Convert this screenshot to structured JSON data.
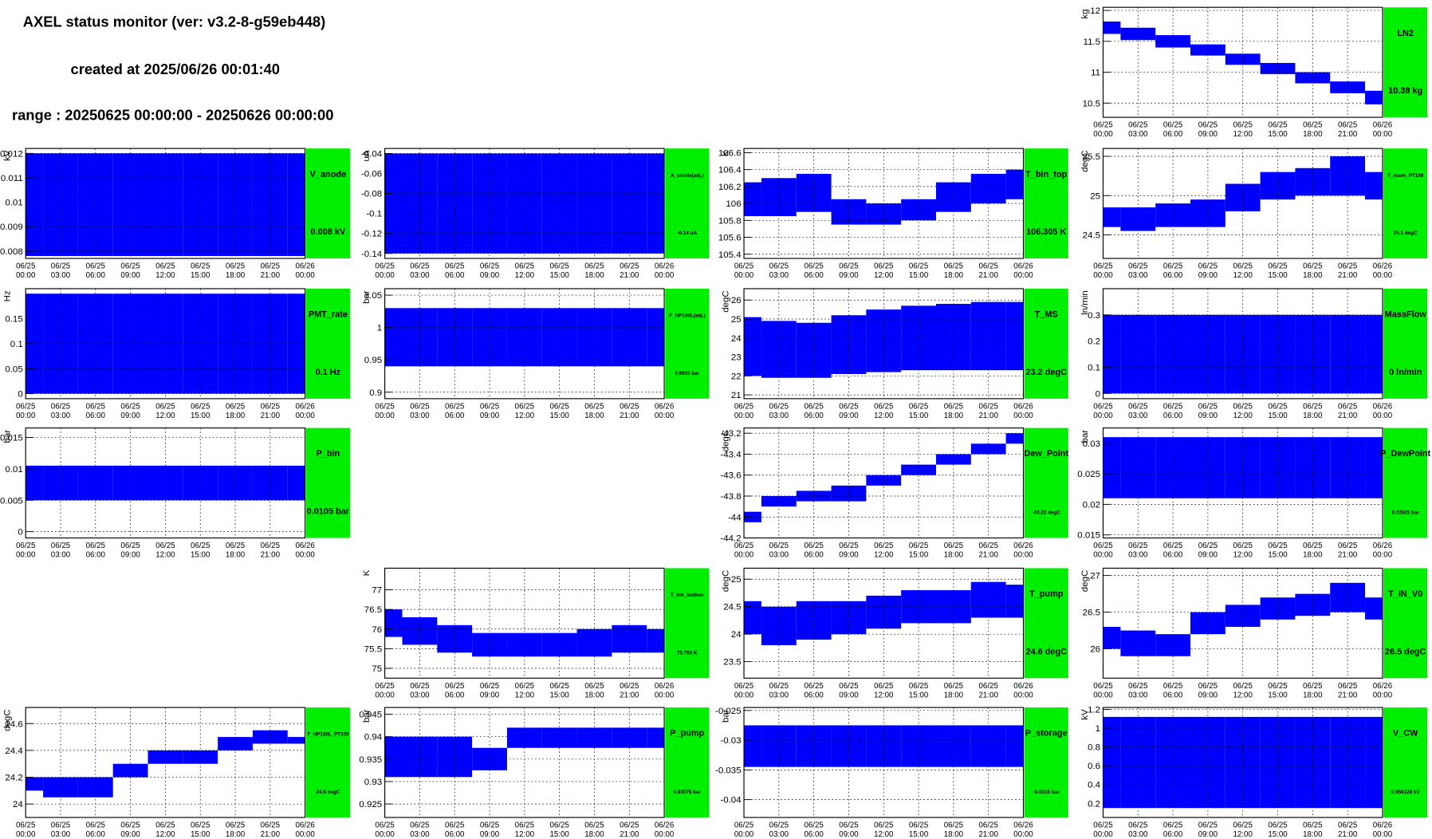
{
  "header": {
    "title": "AXEL status monitor (ver: v3.2-8-g59eb448)",
    "created": "created at 2025/06/26 00:01:40",
    "range": "range : 20250625 00:00:00 - 20250626 00:00:00"
  },
  "time_ticks": [
    {
      "date": "06/25",
      "time": "00:00"
    },
    {
      "date": "06/25",
      "time": "03:00"
    },
    {
      "date": "06/25",
      "time": "06:00"
    },
    {
      "date": "06/25",
      "time": "09:00"
    },
    {
      "date": "06/25",
      "time": "12:00"
    },
    {
      "date": "06/25",
      "time": "15:00"
    },
    {
      "date": "06/25",
      "time": "18:00"
    },
    {
      "date": "06/25",
      "time": "21:00"
    },
    {
      "date": "06/26",
      "time": "00:00"
    }
  ],
  "chart_data": [
    {
      "type": "band",
      "title": "LN2",
      "value_text": "10.38 kg",
      "ylabel": "kg",
      "color": "#0000ff",
      "grid": true,
      "ylim": [
        10.27,
        12.05
      ],
      "yticks": [
        10.5,
        11,
        11.5,
        12
      ],
      "low": [
        11.62,
        11.52,
        11.4,
        11.27,
        11.12,
        10.97,
        10.82,
        10.66,
        10.48
      ],
      "high": [
        11.82,
        11.72,
        11.6,
        11.45,
        11.3,
        11.15,
        11.0,
        10.85,
        10.7
      ]
    },
    {
      "type": "band",
      "title": "V_anode",
      "value_text": "0.008 kV",
      "ylabel": "kV",
      "color": "#0000ff",
      "grid": true,
      "ylim": [
        0.0077,
        0.0122
      ],
      "yticks": [
        0.008,
        0.009,
        0.01,
        0.011,
        0.012
      ],
      "low": [
        0.0078,
        0.0078,
        0.0078,
        0.0078,
        0.0078,
        0.0078,
        0.0078,
        0.0078,
        0.0078
      ],
      "high": [
        0.012,
        0.012,
        0.012,
        0.012,
        0.012,
        0.012,
        0.012,
        0.012,
        0.012
      ]
    },
    {
      "type": "band",
      "title": "A_anode(adj.)",
      "value_text": "-0.14 uA",
      "ylabel": "uA",
      "color": "#0000ff",
      "grid": true,
      "ylim": [
        -0.145,
        -0.035
      ],
      "yticks": [
        -0.14,
        -0.12,
        -0.1,
        -0.08,
        -0.06,
        -0.04
      ],
      "low": [
        -0.14,
        -0.14,
        -0.14,
        -0.14,
        -0.14,
        -0.14,
        -0.14,
        -0.14,
        -0.14
      ],
      "high": [
        -0.04,
        -0.04,
        -0.04,
        -0.04,
        -0.04,
        -0.04,
        -0.04,
        -0.04,
        -0.04
      ]
    },
    {
      "type": "band",
      "title": "T_bin_top",
      "value_text": "106.305 K",
      "ylabel": "K",
      "color": "#0000ff",
      "grid": true,
      "ylim": [
        105.35,
        106.65
      ],
      "yticks": [
        105.4,
        105.6,
        105.8,
        106,
        106.2,
        106.4,
        106.6
      ],
      "low": [
        105.85,
        105.85,
        105.9,
        105.75,
        105.75,
        105.8,
        105.9,
        106.0,
        106.05
      ],
      "high": [
        106.25,
        106.3,
        106.35,
        106.05,
        106.0,
        106.05,
        106.25,
        106.35,
        106.4
      ]
    },
    {
      "type": "band",
      "title": "T_room_PT100",
      "value_text": "25.1 degC",
      "ylabel": "degC",
      "color": "#0000ff",
      "grid": true,
      "ylim": [
        24.2,
        25.6
      ],
      "yticks": [
        24.5,
        25,
        25.5
      ],
      "low": [
        24.6,
        24.55,
        24.6,
        24.6,
        24.8,
        24.95,
        25.0,
        25.0,
        24.95
      ],
      "high": [
        24.85,
        24.85,
        24.9,
        24.95,
        25.15,
        25.3,
        25.35,
        25.5,
        25.3
      ]
    },
    {
      "type": "band",
      "title": "PMT_rate",
      "value_text": "0.1 Hz",
      "ylabel": "Hz",
      "color": "#0000ff",
      "grid": true,
      "ylim": [
        -0.01,
        0.21
      ],
      "yticks": [
        0,
        0.05,
        0.1,
        0.15
      ],
      "low": [
        0,
        0,
        0,
        0,
        0,
        0,
        0,
        0,
        0
      ],
      "high": [
        0.2,
        0.2,
        0.2,
        0.2,
        0.2,
        0.2,
        0.2,
        0.2,
        0.2
      ]
    },
    {
      "type": "band",
      "title": "P_HP180L(adj.)",
      "value_text": "0.9925 bar",
      "ylabel": "bar",
      "color": "#0000ff",
      "grid": true,
      "ylim": [
        0.89,
        1.06
      ],
      "yticks": [
        0.9,
        0.95,
        1,
        1.05
      ],
      "low": [
        0.94,
        0.94,
        0.94,
        0.94,
        0.94,
        0.94,
        0.94,
        0.94,
        0.94
      ],
      "high": [
        1.03,
        1.03,
        1.03,
        1.03,
        1.03,
        1.03,
        1.03,
        1.03,
        1.03
      ]
    },
    {
      "type": "band",
      "title": "T_MS",
      "value_text": "23.2 degC",
      "ylabel": "degC",
      "color": "#0000ff",
      "grid": true,
      "ylim": [
        20.8,
        26.6
      ],
      "yticks": [
        21,
        22,
        23,
        24,
        25,
        26
      ],
      "low": [
        22.0,
        21.9,
        21.9,
        22.1,
        22.2,
        22.3,
        22.3,
        22.3,
        22.3
      ],
      "high": [
        25.1,
        24.9,
        24.8,
        25.2,
        25.5,
        25.7,
        25.8,
        25.9,
        25.9
      ]
    },
    {
      "type": "band",
      "title": "MassFlow",
      "value_text": "0 ln/min",
      "ylabel": "ln/min",
      "color": "#0000ff",
      "grid": true,
      "ylim": [
        -0.02,
        0.4
      ],
      "yticks": [
        0,
        0.1,
        0.2,
        0.3
      ],
      "low": [
        0,
        0,
        0,
        0,
        0,
        0,
        0,
        0,
        0
      ],
      "high": [
        0.3,
        0.3,
        0.3,
        0.3,
        0.3,
        0.3,
        0.3,
        0.3,
        0.3
      ]
    },
    {
      "type": "band",
      "title": "P_bin",
      "value_text": "0.0105 bar",
      "ylabel": "bar",
      "color": "#0000ff",
      "grid": true,
      "ylim": [
        -0.001,
        0.0165
      ],
      "yticks": [
        0,
        0.005,
        0.01,
        0.015
      ],
      "low": [
        0.005,
        0.005,
        0.005,
        0.005,
        0.005,
        0.005,
        0.005,
        0.005,
        0.005
      ],
      "high": [
        0.0105,
        0.0105,
        0.0105,
        0.0105,
        0.0105,
        0.0105,
        0.0105,
        0.0105,
        0.0105
      ]
    },
    {
      "type": "band",
      "title": "Dew_Point",
      "value_text": "-43.22 degC",
      "ylabel": "degC",
      "color": "#0000ff",
      "grid": true,
      "ylim": [
        -44.2,
        -43.15
      ],
      "yticks": [
        -44.2,
        -44,
        -43.8,
        -43.6,
        -43.4,
        -43.2
      ],
      "low": [
        -44.05,
        -43.9,
        -43.85,
        -43.85,
        -43.7,
        -43.6,
        -43.5,
        -43.4,
        -43.3
      ],
      "high": [
        -43.95,
        -43.8,
        -43.75,
        -43.7,
        -43.6,
        -43.5,
        -43.4,
        -43.3,
        -43.2
      ]
    },
    {
      "type": "band",
      "title": "P_DewPoint",
      "value_text": "0.02625 bar",
      "ylabel": "bar",
      "color": "#0000ff",
      "grid": true,
      "ylim": [
        0.0145,
        0.0325
      ],
      "yticks": [
        0.015,
        0.02,
        0.025,
        0.03
      ],
      "low": [
        0.021,
        0.021,
        0.021,
        0.021,
        0.021,
        0.021,
        0.021,
        0.021,
        0.021
      ],
      "high": [
        0.031,
        0.031,
        0.031,
        0.031,
        0.031,
        0.031,
        0.031,
        0.031,
        0.031
      ]
    },
    {
      "type": "band",
      "title": "T_bin_bottom",
      "value_text": "75.705 K",
      "ylabel": "K",
      "color": "#0000ff",
      "grid": true,
      "ylim": [
        74.75,
        77.55
      ],
      "yticks": [
        75,
        75.5,
        76,
        76.5,
        77
      ],
      "low": [
        75.8,
        75.6,
        75.4,
        75.3,
        75.3,
        75.3,
        75.3,
        75.4,
        75.4
      ],
      "high": [
        76.5,
        76.3,
        76.1,
        75.9,
        75.9,
        75.9,
        76.0,
        76.1,
        76.0
      ]
    },
    {
      "type": "band",
      "title": "T_pump",
      "value_text": "24.6 degC",
      "ylabel": "degC",
      "color": "#0000ff",
      "grid": true,
      "ylim": [
        23.2,
        25.2
      ],
      "yticks": [
        23.5,
        24,
        24.5,
        25
      ],
      "low": [
        24.0,
        23.8,
        23.9,
        24.0,
        24.1,
        24.2,
        24.2,
        24.3,
        24.3
      ],
      "high": [
        24.6,
        24.5,
        24.6,
        24.6,
        24.7,
        24.8,
        24.8,
        24.95,
        24.9
      ]
    },
    {
      "type": "band",
      "title": "T_IN_V0",
      "value_text": "26.5 degC",
      "ylabel": "degC",
      "color": "#0000ff",
      "grid": true,
      "ylim": [
        25.6,
        27.1
      ],
      "yticks": [
        26,
        26.5,
        27
      ],
      "low": [
        26.0,
        25.9,
        25.9,
        26.2,
        26.3,
        26.4,
        26.45,
        26.5,
        26.4
      ],
      "high": [
        26.3,
        26.25,
        26.2,
        26.5,
        26.6,
        26.7,
        26.75,
        26.9,
        26.7
      ]
    },
    {
      "type": "band",
      "title": "T_HP180L_PT100",
      "value_text": "24.5 degC",
      "ylabel": "degC",
      "color": "#0000ff",
      "grid": true,
      "ylim": [
        23.9,
        24.72
      ],
      "yticks": [
        24,
        24.2,
        24.4,
        24.6
      ],
      "low": [
        24.1,
        24.05,
        24.05,
        24.2,
        24.3,
        24.3,
        24.4,
        24.45,
        24.45
      ],
      "high": [
        24.2,
        24.2,
        24.2,
        24.3,
        24.4,
        24.4,
        24.5,
        24.55,
        24.5
      ]
    },
    {
      "type": "band",
      "title": "P_pump",
      "value_text": "0.93975 bar",
      "ylabel": "bar",
      "color": "#0000ff",
      "grid": true,
      "ylim": [
        0.922,
        0.9465
      ],
      "yticks": [
        0.925,
        0.93,
        0.935,
        0.94,
        0.945
      ],
      "low": [
        0.931,
        0.931,
        0.931,
        0.9325,
        0.9375,
        0.9375,
        0.9375,
        0.9375,
        0.9375
      ],
      "high": [
        0.94,
        0.94,
        0.94,
        0.9375,
        0.942,
        0.942,
        0.942,
        0.942,
        0.942
      ]
    },
    {
      "type": "band",
      "title": "P_storage",
      "value_text": "-0.0315 bar",
      "ylabel": "bar",
      "color": "#0000ff",
      "grid": true,
      "ylim": [
        -0.043,
        -0.0245
      ],
      "yticks": [
        -0.04,
        -0.035,
        -0.03,
        -0.025
      ],
      "low": [
        -0.0345,
        -0.0345,
        -0.0345,
        -0.0345,
        -0.0345,
        -0.0345,
        -0.0345,
        -0.0345,
        -0.0345
      ],
      "high": [
        -0.0275,
        -0.0275,
        -0.0275,
        -0.0275,
        -0.0275,
        -0.0275,
        -0.0275,
        -0.0275,
        -0.0275
      ]
    },
    {
      "type": "band",
      "title": "V_CW",
      "value_text": "0.956129 kV",
      "ylabel": "kV",
      "color": "#0000ff",
      "grid": true,
      "ylim": [
        0.05,
        1.22
      ],
      "yticks": [
        0.2,
        0.4,
        0.6,
        0.8,
        1,
        1.2
      ],
      "low": [
        0.15,
        0.15,
        0.15,
        0.15,
        0.15,
        0.15,
        0.15,
        0.15,
        0.15
      ],
      "high": [
        1.12,
        1.12,
        1.12,
        1.12,
        1.12,
        1.12,
        1.12,
        1.12,
        1.12
      ]
    }
  ]
}
